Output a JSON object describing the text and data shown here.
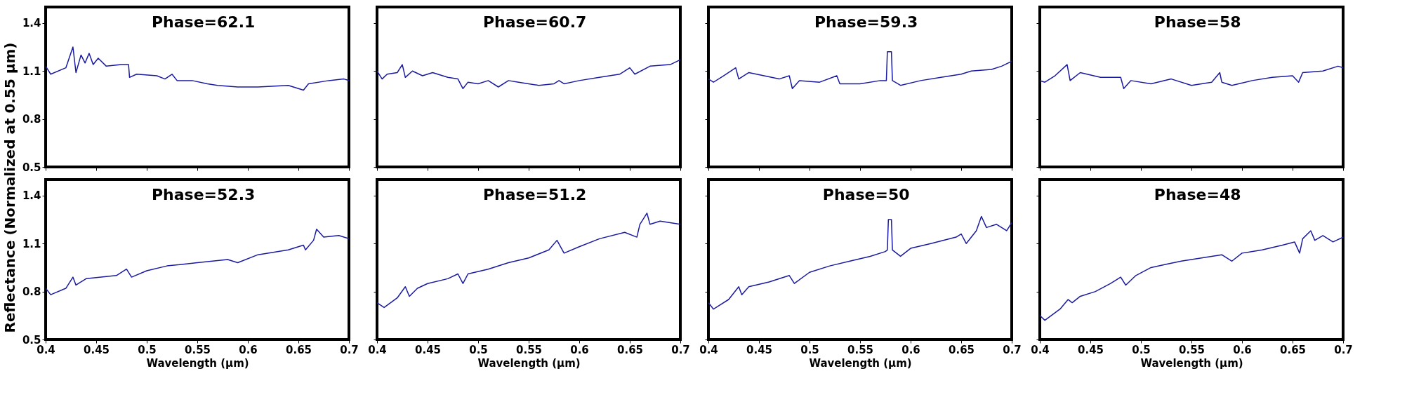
{
  "chart_data": [
    {
      "type": "line",
      "annotations": [
        "Phase=62.1"
      ],
      "ylabel": "Reflectance (Normalized at 0.55 μm)",
      "tick_labels": "y",
      "xlim": [
        0.4,
        0.7
      ],
      "xticks": [
        0.4,
        0.45,
        0.5,
        0.55,
        0.6,
        0.65,
        0.7
      ],
      "ylim": [
        0.5,
        1.5
      ],
      "yticks": [
        0.5,
        0.8,
        1.1,
        1.4
      ],
      "x": [
        0.4,
        0.405,
        0.42,
        0.427,
        0.43,
        0.435,
        0.439,
        0.443,
        0.447,
        0.452,
        0.46,
        0.475,
        0.482,
        0.483,
        0.49,
        0.51,
        0.518,
        0.525,
        0.53,
        0.545,
        0.56,
        0.57,
        0.59,
        0.61,
        0.64,
        0.655,
        0.66,
        0.68,
        0.695,
        0.7
      ],
      "series": [
        {
          "color": "#1a1aa0",
          "values": [
            1.13,
            1.08,
            1.12,
            1.25,
            1.09,
            1.2,
            1.15,
            1.21,
            1.14,
            1.18,
            1.13,
            1.14,
            1.14,
            1.06,
            1.08,
            1.07,
            1.05,
            1.08,
            1.04,
            1.04,
            1.02,
            1.01,
            1.0,
            1.0,
            1.01,
            0.98,
            1.02,
            1.04,
            1.05,
            1.04
          ]
        }
      ]
    },
    {
      "type": "line",
      "annotations": [
        "Phase=60.7"
      ],
      "tick_labels": false,
      "xlim": [
        0.4,
        0.7
      ],
      "xticks": [
        0.4,
        0.45,
        0.5,
        0.55,
        0.6,
        0.65,
        0.7
      ],
      "ylim": [
        0.5,
        1.5
      ],
      "yticks": [
        0.5,
        0.8,
        1.1,
        1.4
      ],
      "x": [
        0.4,
        0.405,
        0.41,
        0.42,
        0.425,
        0.428,
        0.435,
        0.445,
        0.455,
        0.47,
        0.48,
        0.485,
        0.49,
        0.5,
        0.51,
        0.52,
        0.53,
        0.54,
        0.56,
        0.575,
        0.58,
        0.585,
        0.6,
        0.62,
        0.64,
        0.65,
        0.655,
        0.67,
        0.69,
        0.7
      ],
      "series": [
        {
          "color": "#1a1aa0",
          "values": [
            1.1,
            1.05,
            1.08,
            1.09,
            1.14,
            1.06,
            1.1,
            1.07,
            1.09,
            1.06,
            1.05,
            0.99,
            1.03,
            1.02,
            1.04,
            1.0,
            1.04,
            1.03,
            1.01,
            1.02,
            1.04,
            1.02,
            1.04,
            1.06,
            1.08,
            1.12,
            1.08,
            1.13,
            1.14,
            1.17
          ]
        }
      ]
    },
    {
      "type": "line",
      "annotations": [
        "Phase=59.3"
      ],
      "tick_labels": false,
      "xlim": [
        0.4,
        0.7
      ],
      "xticks": [
        0.4,
        0.45,
        0.5,
        0.55,
        0.6,
        0.65,
        0.7
      ],
      "ylim": [
        0.5,
        1.5
      ],
      "yticks": [
        0.5,
        0.8,
        1.1,
        1.4
      ],
      "x": [
        0.4,
        0.405,
        0.415,
        0.427,
        0.43,
        0.44,
        0.455,
        0.47,
        0.48,
        0.483,
        0.49,
        0.51,
        0.527,
        0.53,
        0.55,
        0.57,
        0.576,
        0.577,
        0.581,
        0.582,
        0.59,
        0.61,
        0.63,
        0.65,
        0.66,
        0.68,
        0.69,
        0.7
      ],
      "series": [
        {
          "color": "#1a1aa0",
          "values": [
            1.05,
            1.03,
            1.07,
            1.12,
            1.05,
            1.09,
            1.07,
            1.05,
            1.07,
            0.99,
            1.04,
            1.03,
            1.07,
            1.02,
            1.02,
            1.04,
            1.04,
            1.22,
            1.22,
            1.04,
            1.01,
            1.04,
            1.06,
            1.08,
            1.1,
            1.11,
            1.13,
            1.16
          ]
        }
      ]
    },
    {
      "type": "line",
      "annotations": [
        "Phase=58"
      ],
      "tick_labels": false,
      "xlim": [
        0.4,
        0.7
      ],
      "xticks": [
        0.4,
        0.45,
        0.5,
        0.55,
        0.6,
        0.65,
        0.7
      ],
      "ylim": [
        0.5,
        1.5
      ],
      "yticks": [
        0.5,
        0.8,
        1.1,
        1.4
      ],
      "x": [
        0.4,
        0.405,
        0.415,
        0.427,
        0.43,
        0.44,
        0.46,
        0.48,
        0.483,
        0.49,
        0.51,
        0.53,
        0.55,
        0.57,
        0.578,
        0.58,
        0.59,
        0.61,
        0.63,
        0.65,
        0.656,
        0.66,
        0.68,
        0.695,
        0.7
      ],
      "series": [
        {
          "color": "#1a1aa0",
          "values": [
            1.04,
            1.03,
            1.07,
            1.14,
            1.04,
            1.09,
            1.06,
            1.06,
            0.99,
            1.04,
            1.02,
            1.05,
            1.01,
            1.03,
            1.09,
            1.03,
            1.01,
            1.04,
            1.06,
            1.07,
            1.03,
            1.09,
            1.1,
            1.13,
            1.12
          ]
        }
      ]
    },
    {
      "type": "line",
      "annotations": [
        "Phase=52.3"
      ],
      "xlabel": "Wavelength (μm)",
      "xlim": [
        0.4,
        0.7
      ],
      "xticks": [
        0.4,
        0.45,
        0.5,
        0.55,
        0.6,
        0.65,
        0.7
      ],
      "ylim": [
        0.5,
        1.5
      ],
      "yticks": [
        0.5,
        0.8,
        1.1,
        1.4
      ],
      "x": [
        0.4,
        0.405,
        0.42,
        0.427,
        0.43,
        0.44,
        0.455,
        0.47,
        0.48,
        0.485,
        0.5,
        0.52,
        0.55,
        0.58,
        0.59,
        0.61,
        0.64,
        0.655,
        0.657,
        0.665,
        0.668,
        0.675,
        0.69,
        0.7
      ],
      "series": [
        {
          "color": "#1a1aa0",
          "values": [
            0.82,
            0.78,
            0.82,
            0.89,
            0.84,
            0.88,
            0.89,
            0.9,
            0.94,
            0.89,
            0.93,
            0.96,
            0.98,
            1.0,
            0.98,
            1.03,
            1.06,
            1.09,
            1.06,
            1.12,
            1.19,
            1.14,
            1.15,
            1.13
          ]
        }
      ]
    },
    {
      "type": "line",
      "annotations": [
        "Phase=51.2"
      ],
      "xlabel": "Wavelength (μm)",
      "tick_labels": "x",
      "xlim": [
        0.4,
        0.7
      ],
      "xticks": [
        0.4,
        0.45,
        0.5,
        0.55,
        0.6,
        0.65,
        0.7
      ],
      "ylim": [
        0.5,
        1.5
      ],
      "yticks": [
        0.5,
        0.8,
        1.1,
        1.4
      ],
      "x": [
        0.4,
        0.407,
        0.42,
        0.428,
        0.432,
        0.44,
        0.45,
        0.47,
        0.48,
        0.485,
        0.49,
        0.51,
        0.53,
        0.55,
        0.57,
        0.578,
        0.585,
        0.6,
        0.62,
        0.645,
        0.657,
        0.66,
        0.667,
        0.67,
        0.68,
        0.7
      ],
      "series": [
        {
          "color": "#1a1aa0",
          "values": [
            0.73,
            0.7,
            0.76,
            0.83,
            0.77,
            0.82,
            0.85,
            0.88,
            0.91,
            0.85,
            0.91,
            0.94,
            0.98,
            1.01,
            1.06,
            1.12,
            1.04,
            1.08,
            1.13,
            1.17,
            1.14,
            1.22,
            1.29,
            1.22,
            1.24,
            1.22
          ]
        }
      ]
    },
    {
      "type": "line",
      "annotations": [
        "Phase=50"
      ],
      "xlabel": "Wavelength (μm)",
      "tick_labels": "x",
      "xlim": [
        0.4,
        0.7
      ],
      "xticks": [
        0.4,
        0.45,
        0.5,
        0.55,
        0.6,
        0.65,
        0.7
      ],
      "ylim": [
        0.5,
        1.5
      ],
      "yticks": [
        0.5,
        0.8,
        1.1,
        1.4
      ],
      "x": [
        0.4,
        0.405,
        0.42,
        0.43,
        0.433,
        0.44,
        0.46,
        0.48,
        0.485,
        0.5,
        0.52,
        0.54,
        0.56,
        0.575,
        0.577,
        0.578,
        0.581,
        0.582,
        0.59,
        0.6,
        0.62,
        0.645,
        0.65,
        0.655,
        0.665,
        0.67,
        0.675,
        0.685,
        0.695,
        0.7
      ],
      "series": [
        {
          "color": "#1a1aa0",
          "values": [
            0.73,
            0.69,
            0.75,
            0.83,
            0.78,
            0.83,
            0.86,
            0.9,
            0.85,
            0.92,
            0.96,
            0.99,
            1.02,
            1.05,
            1.06,
            1.25,
            1.25,
            1.06,
            1.02,
            1.07,
            1.1,
            1.14,
            1.16,
            1.1,
            1.18,
            1.27,
            1.2,
            1.22,
            1.18,
            1.23
          ]
        }
      ]
    },
    {
      "type": "line",
      "annotations": [
        "Phase=48"
      ],
      "xlabel": "Wavelength (μm)",
      "tick_labels": "x",
      "xlim": [
        0.4,
        0.7
      ],
      "xticks": [
        0.4,
        0.45,
        0.5,
        0.55,
        0.6,
        0.65,
        0.7
      ],
      "ylim": [
        0.5,
        1.5
      ],
      "yticks": [
        0.5,
        0.8,
        1.1,
        1.4
      ],
      "x": [
        0.4,
        0.405,
        0.42,
        0.428,
        0.432,
        0.44,
        0.455,
        0.47,
        0.48,
        0.485,
        0.495,
        0.51,
        0.525,
        0.54,
        0.56,
        0.58,
        0.59,
        0.6,
        0.62,
        0.64,
        0.652,
        0.657,
        0.66,
        0.668,
        0.672,
        0.68,
        0.69,
        0.7
      ],
      "series": [
        {
          "color": "#1a1aa0",
          "values": [
            0.65,
            0.62,
            0.69,
            0.75,
            0.73,
            0.77,
            0.8,
            0.85,
            0.89,
            0.84,
            0.9,
            0.95,
            0.97,
            0.99,
            1.01,
            1.03,
            0.99,
            1.04,
            1.06,
            1.09,
            1.11,
            1.04,
            1.13,
            1.18,
            1.12,
            1.15,
            1.11,
            1.14
          ]
        }
      ]
    }
  ]
}
